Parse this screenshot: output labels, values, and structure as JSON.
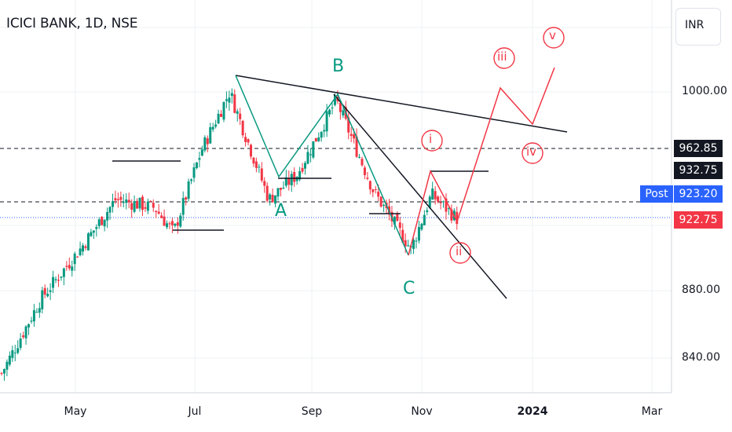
{
  "header": {
    "title": "ICICI BANK, 1D, NSE",
    "currency": "INR"
  },
  "price_axis": {
    "ticks": [
      "1000.00",
      "880.00",
      "840.00"
    ],
    "levels": {
      "line_962": "962.85",
      "line_932": "932.75",
      "post_price": "923.20",
      "last_price": "922.75"
    },
    "post_label": "Post"
  },
  "time_axis": {
    "ticks": [
      "May",
      "Jul",
      "Sep",
      "Nov",
      "2024",
      "Mar"
    ]
  },
  "annotations": {
    "wave_A": "A",
    "wave_B": "B",
    "wave_C": "C",
    "wave_i": "i",
    "wave_ii": "ii",
    "wave_iii": "iii",
    "wave_iv": "iv",
    "wave_v": "v"
  },
  "colors": {
    "up": "#089981",
    "down": "#f23645",
    "accent_red": "#f23645",
    "teal": "#089981",
    "post_blue": "#2962ff"
  },
  "chart_data": {
    "type": "candlestick",
    "title": "ICICI BANK, 1D, NSE",
    "ylim": [
      820,
      1040
    ],
    "x_ticks": [
      "May",
      "Jul",
      "Sep",
      "Nov",
      "2024",
      "Mar"
    ],
    "y_ticks": [
      840,
      880,
      1000
    ],
    "horizontal_levels": [
      962.85,
      932.75,
      923.2,
      922.75
    ],
    "elliott_labels": [
      "A",
      "B",
      "C",
      "i",
      "ii",
      "iii",
      "iv",
      "v"
    ],
    "close_path_approx": [
      {
        "date": "2023-03-20",
        "close": 830
      },
      {
        "date": "2023-04-10",
        "close": 875
      },
      {
        "date": "2023-05-01",
        "close": 905
      },
      {
        "date": "2023-05-20",
        "close": 935
      },
      {
        "date": "2023-06-10",
        "close": 930
      },
      {
        "date": "2023-06-20",
        "close": 915
      },
      {
        "date": "2023-07-05",
        "close": 965
      },
      {
        "date": "2023-07-20",
        "close": 1000
      },
      {
        "date": "2023-08-10",
        "close": 935
      },
      {
        "date": "2023-08-25",
        "close": 950
      },
      {
        "date": "2023-09-15",
        "close": 995
      },
      {
        "date": "2023-10-05",
        "close": 940
      },
      {
        "date": "2023-10-25",
        "close": 905
      },
      {
        "date": "2023-11-05",
        "close": 938
      },
      {
        "date": "2023-11-20",
        "close": 922
      }
    ]
  }
}
